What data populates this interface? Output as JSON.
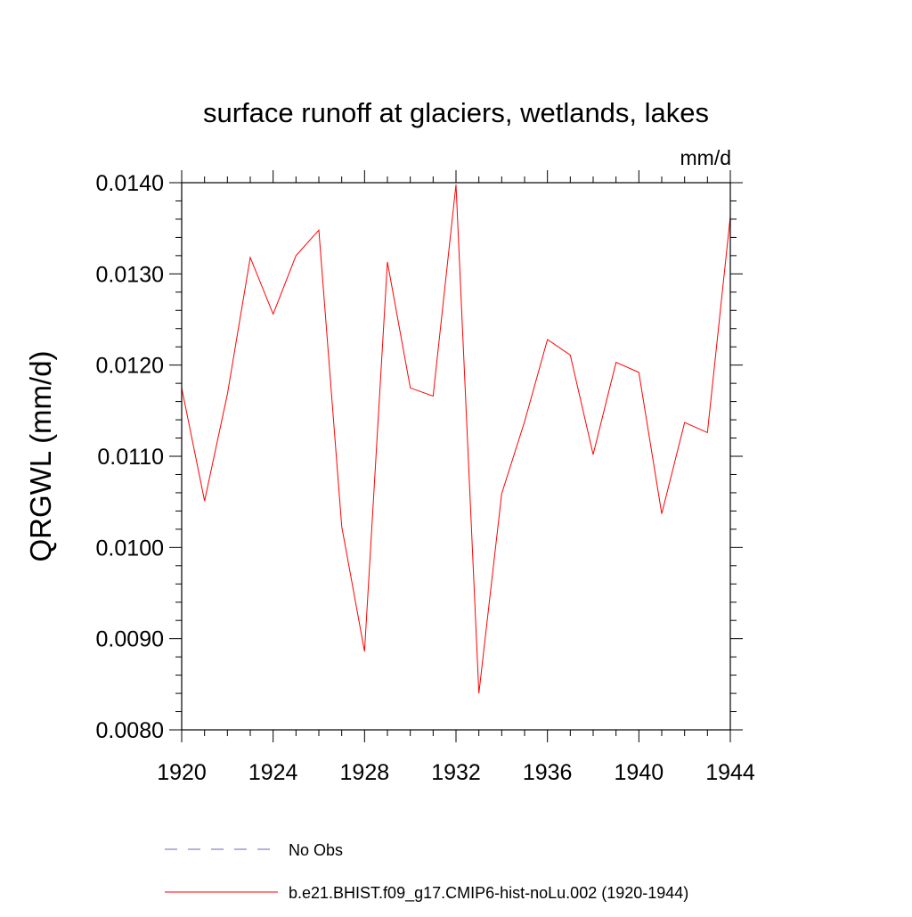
{
  "chart_data": {
    "type": "line",
    "title": "surface runoff at glaciers, wetlands, lakes",
    "units": "mm/d",
    "xlabel": "",
    "ylabel": "QRGWL  (mm/d)",
    "xlim": [
      1920,
      1944
    ],
    "ylim": [
      0.008,
      0.014
    ],
    "x_ticks": [
      1920,
      1924,
      1928,
      1932,
      1936,
      1940,
      1944
    ],
    "x_tick_labels": [
      "1920",
      "1924",
      "1928",
      "1932",
      "1936",
      "1940",
      "1944"
    ],
    "y_ticks": [
      0.008,
      0.009,
      0.01,
      0.011,
      0.012,
      0.013,
      0.014
    ],
    "y_tick_labels": [
      "0.0080",
      "0.0090",
      "0.0100",
      "0.0110",
      "0.0120",
      "0.0130",
      "0.0140"
    ],
    "grid": false,
    "legend_position": "bottom",
    "series": [
      {
        "name": "No Obs",
        "color": "#6a6ab4",
        "style": "dashed",
        "x": [],
        "values": []
      },
      {
        "name": "b.e21.BHIST.f09_g17.CMIP6-hist-noLu.002 (1920-1944)",
        "color": "#ff0000",
        "style": "solid",
        "x": [
          1920,
          1921,
          1922,
          1923,
          1924,
          1925,
          1926,
          1927,
          1928,
          1929,
          1930,
          1931,
          1932,
          1933,
          1934,
          1935,
          1936,
          1937,
          1938,
          1939,
          1940,
          1941,
          1942,
          1943,
          1944
        ],
        "values": [
          0.01175,
          0.01051,
          0.01168,
          0.01318,
          0.01256,
          0.0132,
          0.01348,
          0.01023,
          0.00886,
          0.01313,
          0.01175,
          0.01166,
          0.01398,
          0.0084,
          0.01059,
          0.01138,
          0.01228,
          0.01211,
          0.01102,
          0.01203,
          0.01192,
          0.01037,
          0.01137,
          0.01126,
          0.01363
        ]
      }
    ]
  }
}
